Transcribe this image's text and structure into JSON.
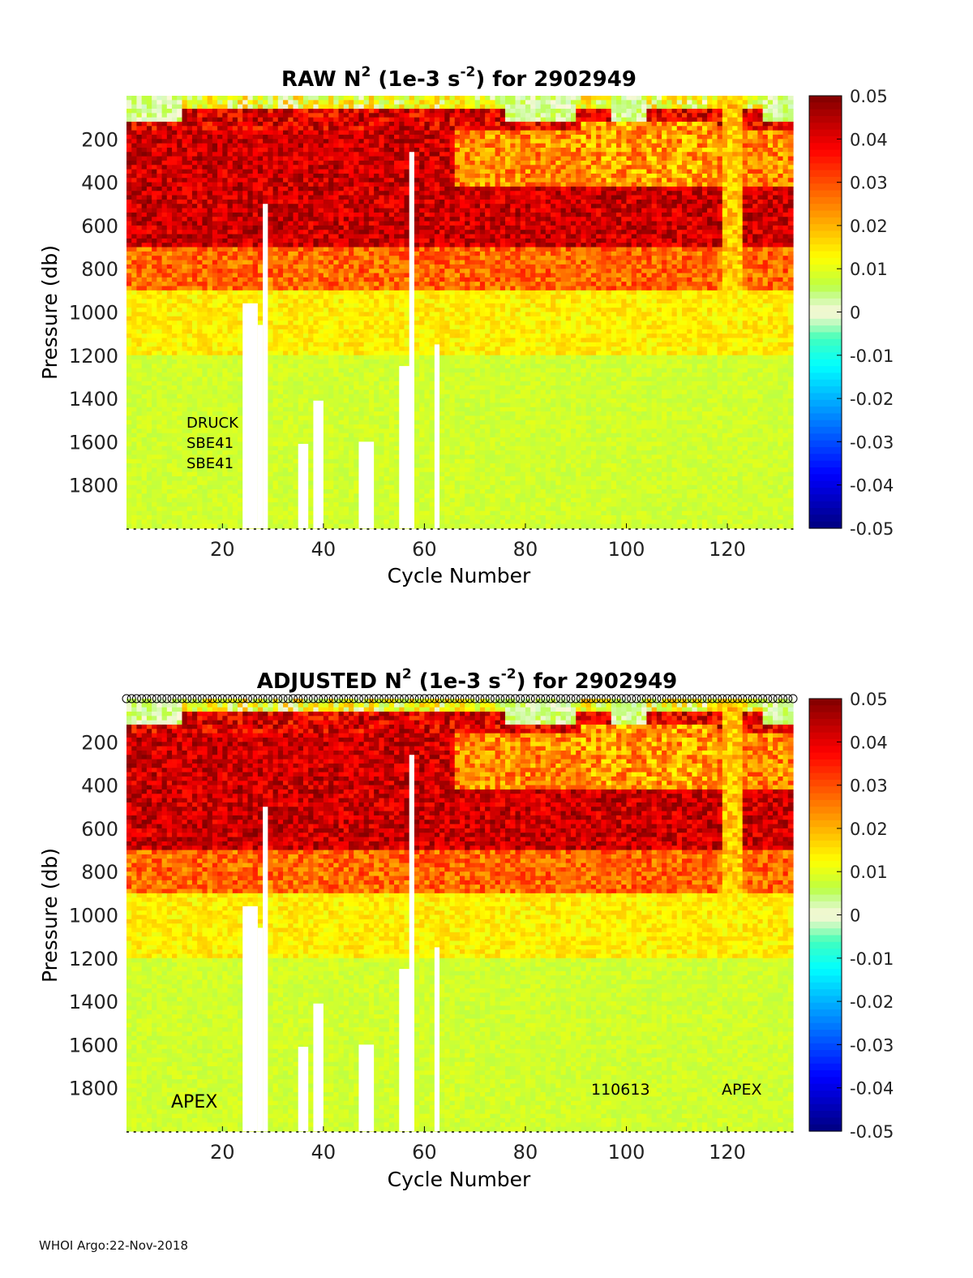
{
  "footer": "WHOI Argo:22-Nov-2018",
  "colors": {
    "colormap": "jet",
    "zero_band": "#fff8dc",
    "missing": "#ffffff"
  },
  "chart_data": [
    {
      "type": "heatmap",
      "title_main": "RAW N",
      "title_sup1": "2",
      "title_unit_a": " (1e-3 s",
      "title_sup2": "-2",
      "title_unit_b": ") for 2902949",
      "xlabel": "Cycle Number",
      "ylabel": "Pressure (db)",
      "xlim": [
        1,
        133
      ],
      "ylim": [
        2000,
        0
      ],
      "xticks": [
        20,
        40,
        60,
        80,
        100,
        120
      ],
      "yticks": [
        200,
        400,
        600,
        800,
        1000,
        1200,
        1400,
        1600,
        1800
      ],
      "colorbar": {
        "clim": [
          -0.05,
          0.05
        ],
        "ticks": [
          0.05,
          0.04,
          0.03,
          0.02,
          0.01,
          0,
          -0.01,
          -0.02,
          -0.03,
          -0.04,
          -0.05
        ],
        "tick_labels": [
          "0.05",
          "0.04",
          "0.03",
          "0.02",
          "0.01",
          "0",
          "-0.01",
          "-0.02",
          "-0.03",
          "-0.04",
          "-0.05"
        ]
      },
      "annotations": [
        "DRUCK",
        "SBE41",
        "SBE41"
      ],
      "top_markers": false,
      "missing_columns": [
        {
          "x": [
            24,
            27
          ],
          "p_from": 960
        },
        {
          "x": [
            27,
            28
          ],
          "p_from": 1060
        },
        {
          "x": [
            28,
            29
          ],
          "p_from": 500
        },
        {
          "x": [
            35,
            37
          ],
          "p_from": 1610
        },
        {
          "x": [
            38,
            40
          ],
          "p_from": 1410
        },
        {
          "x": [
            47,
            50
          ],
          "p_from": 1600
        },
        {
          "x": [
            55,
            58
          ],
          "p_from": 1250
        },
        {
          "x": [
            57,
            58
          ],
          "p_from": 260
        },
        {
          "x": [
            62,
            63
          ],
          "p_from": 1150
        }
      ]
    },
    {
      "type": "heatmap",
      "title_main": "ADJUSTED N",
      "title_sup1": "2",
      "title_unit_a": " (1e-3 s",
      "title_sup2": "-2",
      "title_unit_b": ") for 2902949",
      "xlabel": "Cycle Number",
      "ylabel": "Pressure (db)",
      "xlim": [
        1,
        133
      ],
      "ylim": [
        2000,
        0
      ],
      "xticks": [
        20,
        40,
        60,
        80,
        100,
        120
      ],
      "yticks": [
        200,
        400,
        600,
        800,
        1000,
        1200,
        1400,
        1600,
        1800
      ],
      "colorbar": {
        "clim": [
          -0.05,
          0.05
        ],
        "ticks": [
          0.05,
          0.04,
          0.03,
          0.02,
          0.01,
          0,
          -0.01,
          -0.02,
          -0.03,
          -0.04,
          -0.05
        ],
        "tick_labels": [
          "0.05",
          "0.04",
          "0.03",
          "0.02",
          "0.01",
          "0",
          "-0.01",
          "-0.02",
          "-0.03",
          "-0.04",
          "-0.05"
        ]
      },
      "annotations": [
        "APEX",
        "110613",
        "APEX"
      ],
      "top_markers": true,
      "missing_columns": [
        {
          "x": [
            24,
            27
          ],
          "p_from": 960
        },
        {
          "x": [
            27,
            28
          ],
          "p_from": 1060
        },
        {
          "x": [
            28,
            29
          ],
          "p_from": 500
        },
        {
          "x": [
            35,
            37
          ],
          "p_from": 1610
        },
        {
          "x": [
            38,
            40
          ],
          "p_from": 1410
        },
        {
          "x": [
            47,
            50
          ],
          "p_from": 1600
        },
        {
          "x": [
            55,
            58
          ],
          "p_from": 1250
        },
        {
          "x": [
            57,
            58
          ],
          "p_from": 260
        },
        {
          "x": [
            62,
            63
          ],
          "p_from": 1150
        }
      ]
    }
  ]
}
